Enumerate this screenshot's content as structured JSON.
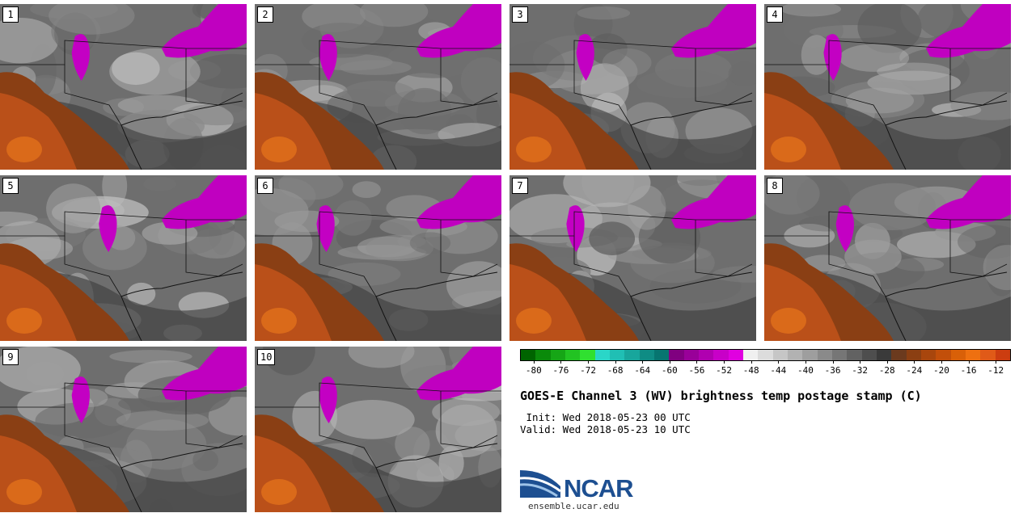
{
  "panels": [
    {
      "label": "1",
      "blob": 0.33
    },
    {
      "label": "2",
      "blob": 0.3
    },
    {
      "label": "3",
      "blob": 0.31
    },
    {
      "label": "4",
      "blob": 0.28
    },
    {
      "label": "5",
      "blob": 0.44
    },
    {
      "label": "6",
      "blob": 0.29
    },
    {
      "label": "7",
      "blob": 0.27
    },
    {
      "label": "8",
      "blob": 0.33
    },
    {
      "label": "9",
      "blob": 0.33
    },
    {
      "label": "10",
      "blob": 0.3
    }
  ],
  "colorbar": {
    "colors": [
      "#006400",
      "#0a8a0a",
      "#16a616",
      "#22c322",
      "#30e030",
      "#2ad6c8",
      "#20bfb4",
      "#18a69c",
      "#0f8c84",
      "#077570",
      "#800080",
      "#990099",
      "#b000b0",
      "#c800c8",
      "#e000e0",
      "#f0f0f0",
      "#dcdcdc",
      "#c6c6c6",
      "#b2b2b2",
      "#9e9e9e",
      "#8a8a8a",
      "#767676",
      "#626262",
      "#4e4e4e",
      "#3a3a3a",
      "#6b3a1e",
      "#8b3f12",
      "#a8460d",
      "#c24f0a",
      "#d96008",
      "#ee7010",
      "#e05a18",
      "#cc3d10"
    ],
    "ticks": [
      "-80",
      "-76",
      "-72",
      "-68",
      "-64",
      "-60",
      "-56",
      "-52",
      "-48",
      "-44",
      "-40",
      "-36",
      "-32",
      "-28",
      "-24",
      "-20",
      "-16",
      "-12"
    ],
    "min": -82,
    "max": -10
  },
  "title": "GOES-E Channel 3 (WV) brightness temp postage stamp (C)",
  "init_line": " Init: Wed 2018-05-23 00 UTC",
  "valid_line": "Valid: Wed 2018-05-23 10 UTC",
  "logo": {
    "text": "NCAR",
    "url": "ensemble.ucar.edu"
  }
}
